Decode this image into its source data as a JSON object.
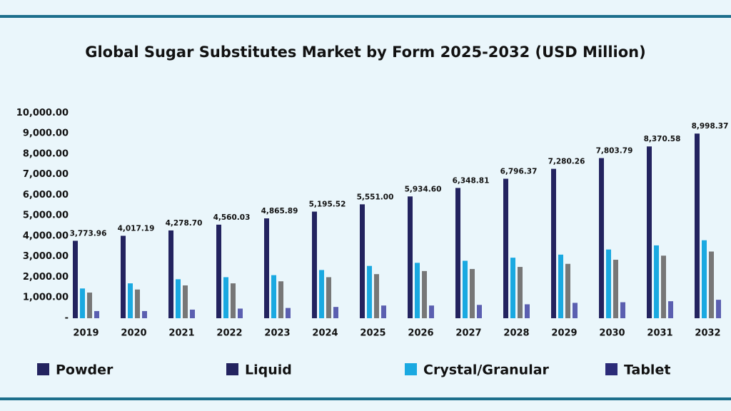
{
  "chart_data": {
    "type": "bar",
    "title": "Global Sugar Substitutes Market by Form 2025-2032 (USD Million)",
    "categories": [
      "2019",
      "2020",
      "2021",
      "2022",
      "2023",
      "2024",
      "2025",
      "2026",
      "2027",
      "2028",
      "2029",
      "2030",
      "2031",
      "2032"
    ],
    "series": [
      {
        "name": "Powder",
        "color": "#23235f",
        "legend_color": "#23235f",
        "values": [
          3773.96,
          4017.19,
          4278.7,
          4560.03,
          4865.89,
          5195.52,
          5551.0,
          5934.6,
          6348.81,
          6796.37,
          7280.26,
          7803.79,
          8370.58,
          8998.37
        ],
        "value_labels": [
          "3,773.96",
          "4,017.19",
          "4,278.70",
          "4,560.03",
          "4,865.89",
          "5,195.52",
          "5,551.00",
          "5,934.60",
          "6,348.81",
          "6,796.37",
          "7,280.26",
          "7,803.79",
          "8,370.58",
          "8,998.37"
        ]
      },
      {
        "name": "Liquid",
        "color": "#1aa9e1",
        "legend_color": "#23235f",
        "values": [
          1450,
          1700,
          1900,
          2000,
          2100,
          2350,
          2550,
          2700,
          2800,
          2950,
          3100,
          3350,
          3550,
          3800
        ]
      },
      {
        "name": "Crystal/Granular",
        "color": "#777777",
        "legend_color": "#1aa9e1",
        "values": [
          1250,
          1400,
          1600,
          1700,
          1800,
          2000,
          2150,
          2300,
          2400,
          2500,
          2650,
          2850,
          3050,
          3250
        ]
      },
      {
        "name": "Tablet",
        "color": "#5b5fb0",
        "legend_color": "#2b2b78",
        "values": [
          350,
          350,
          420,
          470,
          500,
          550,
          620,
          620,
          650,
          680,
          750,
          780,
          830,
          900
        ]
      }
    ],
    "ylim": [
      0,
      10500
    ],
    "yticks": [
      {
        "value": 0,
        "label": "-"
      },
      {
        "value": 1000,
        "label": "1,000.00"
      },
      {
        "value": 2000,
        "label": "2,000.00"
      },
      {
        "value": 3000,
        "label": "3,000.00"
      },
      {
        "value": 4000,
        "label": "4,000.00"
      },
      {
        "value": 5000,
        "label": "5,000.00"
      },
      {
        "value": 6000,
        "label": "6,000.00"
      },
      {
        "value": 7000,
        "label": "7,000.00"
      },
      {
        "value": 8000,
        "label": "8,000.00"
      },
      {
        "value": 9000,
        "label": "9,000.00"
      },
      {
        "value": 10000,
        "label": "10,000.00"
      }
    ],
    "grid": false
  }
}
